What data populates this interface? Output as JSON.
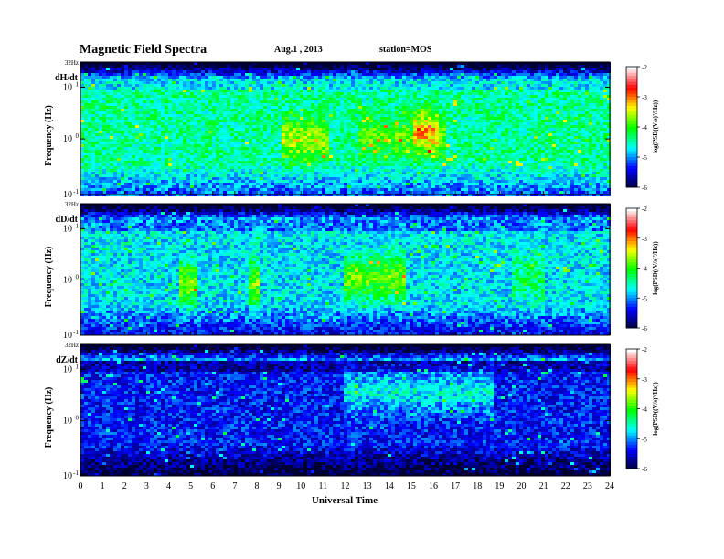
{
  "header": {
    "title": "Magnetic  Field  Spectra",
    "date": "Aug.1  , 2013",
    "station": "station=MOS"
  },
  "chart_data": {
    "type": "heatmap",
    "xlabel": "Universal Time",
    "x_ticks": [
      "0",
      "1",
      "2",
      "3",
      "4",
      "5",
      "6",
      "7",
      "8",
      "9",
      "10",
      "11",
      "12",
      "13",
      "14",
      "15",
      "16",
      "17",
      "18",
      "19",
      "20",
      "21",
      "22",
      "23",
      "24"
    ],
    "xlim": [
      0,
      24
    ],
    "colorbar": {
      "label": "log(PSD((V/s)²/Hz))",
      "ticks": [
        "-2",
        "-3",
        "-4",
        "-5",
        "-6"
      ],
      "range": [
        -6,
        -2
      ],
      "colors": [
        "#000033",
        "#0000ff",
        "#00ffff",
        "#00ff00",
        "#ffff00",
        "#ff0000",
        "#ffffff"
      ]
    },
    "panels": [
      {
        "label": "dH/dt",
        "ylabel": "Frequency  (Hz)",
        "y_ticks": [
          "32Hz",
          "10",
          "10",
          "10"
        ],
        "y_tick_exps": [
          "",
          "1",
          "0",
          "-1"
        ],
        "base_level": -4.4,
        "bursts": [
          {
            "t0": 9.0,
            "t1": 11.2,
            "f": 0.58,
            "amp": 0.9
          },
          {
            "t0": 12.5,
            "t1": 16.5,
            "f": 0.55,
            "amp": 0.6
          },
          {
            "t0": 15.0,
            "t1": 16.2,
            "f": 0.5,
            "amp": 0.8
          }
        ]
      },
      {
        "label": "dD/dt",
        "ylabel": "Frequency  (Hz)",
        "y_ticks": [
          "32Hz",
          "10",
          "10",
          "10"
        ],
        "y_tick_exps": [
          "",
          "1",
          "0",
          "-1"
        ],
        "base_level": -4.7,
        "bursts": [
          {
            "t0": 4.4,
            "t1": 5.2,
            "f": 0.6,
            "amp": 1.1
          },
          {
            "t0": 7.6,
            "t1": 8.1,
            "f": 0.6,
            "amp": 1.0
          },
          {
            "t0": 11.8,
            "t1": 14.6,
            "f": 0.55,
            "amp": 1.0
          },
          {
            "t0": 19.5,
            "t1": 21.0,
            "f": 0.55,
            "amp": 0.5
          }
        ]
      },
      {
        "label": "dZ/dt",
        "ylabel": "Frequency  (Hz)",
        "y_ticks": [
          "32Hz",
          "10",
          "10",
          "10"
        ],
        "y_tick_exps": [
          "",
          "1",
          "0",
          "-1"
        ],
        "base_level": -5.3,
        "bursts": [
          {
            "t0": 11.8,
            "t1": 18.6,
            "f": 0.35,
            "amp": 0.7
          }
        ]
      }
    ]
  }
}
